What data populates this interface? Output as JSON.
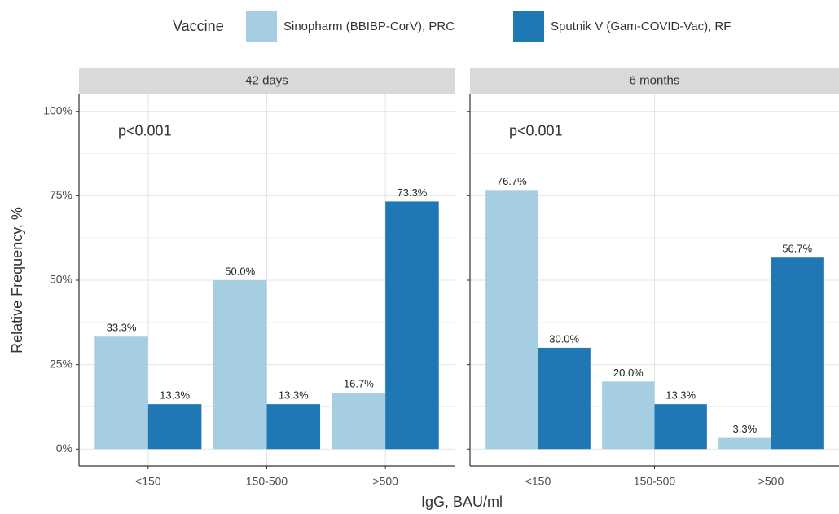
{
  "chart_data": [
    {
      "type": "bar",
      "title": "42 days",
      "legend_title": "Vaccine",
      "xlabel": "IgG, BAU/ml",
      "ylabel": "Relative Frequency, %",
      "annotation": "p<0.001",
      "categories": [
        "<150",
        "150-500",
        ">500"
      ],
      "series": [
        {
          "name": "Sinopharm (BBIBP-CorV), PRC",
          "color": "#a6cee3",
          "values": [
            33.3,
            50.0,
            16.7
          ],
          "value_labels": [
            "33.3%",
            "50.0%",
            "16.7%"
          ]
        },
        {
          "name": "Sputnik V (Gam-COVID-Vac), RF",
          "color": "#1f78b4",
          "values": [
            13.3,
            13.3,
            73.3
          ],
          "value_labels": [
            "13.3%",
            "13.3%",
            "73.3%"
          ]
        }
      ],
      "ylim": [
        -5,
        105
      ],
      "yticks": [
        {
          "value": 0,
          "label": "0%"
        },
        {
          "value": 25,
          "label": "25%"
        },
        {
          "value": 50,
          "label": "50%"
        },
        {
          "value": 75,
          "label": "75%"
        },
        {
          "value": 100,
          "label": "100%"
        }
      ],
      "grid": true
    },
    {
      "type": "bar",
      "title": "6 months",
      "annotation": "p<0.001",
      "categories": [
        "<150",
        "150-500",
        ">500"
      ],
      "series": [
        {
          "name": "Sinopharm (BBIBP-CorV), PRC",
          "color": "#a6cee3",
          "values": [
            76.7,
            20.0,
            3.3
          ],
          "value_labels": [
            "76.7%",
            "20.0%",
            "3.3%"
          ]
        },
        {
          "name": "Sputnik V (Gam-COVID-Vac), RF",
          "color": "#1f78b4",
          "values": [
            30.0,
            13.3,
            56.7
          ],
          "value_labels": [
            "30.0%",
            "13.3%",
            "56.7%"
          ]
        }
      ],
      "ylim": [
        -5,
        105
      ],
      "yticks": [
        {
          "value": 0,
          "label": "0%"
        },
        {
          "value": 25,
          "label": "25%"
        },
        {
          "value": 50,
          "label": "50%"
        },
        {
          "value": 75,
          "label": "75%"
        },
        {
          "value": 100,
          "label": "100%"
        }
      ],
      "grid": true
    }
  ]
}
